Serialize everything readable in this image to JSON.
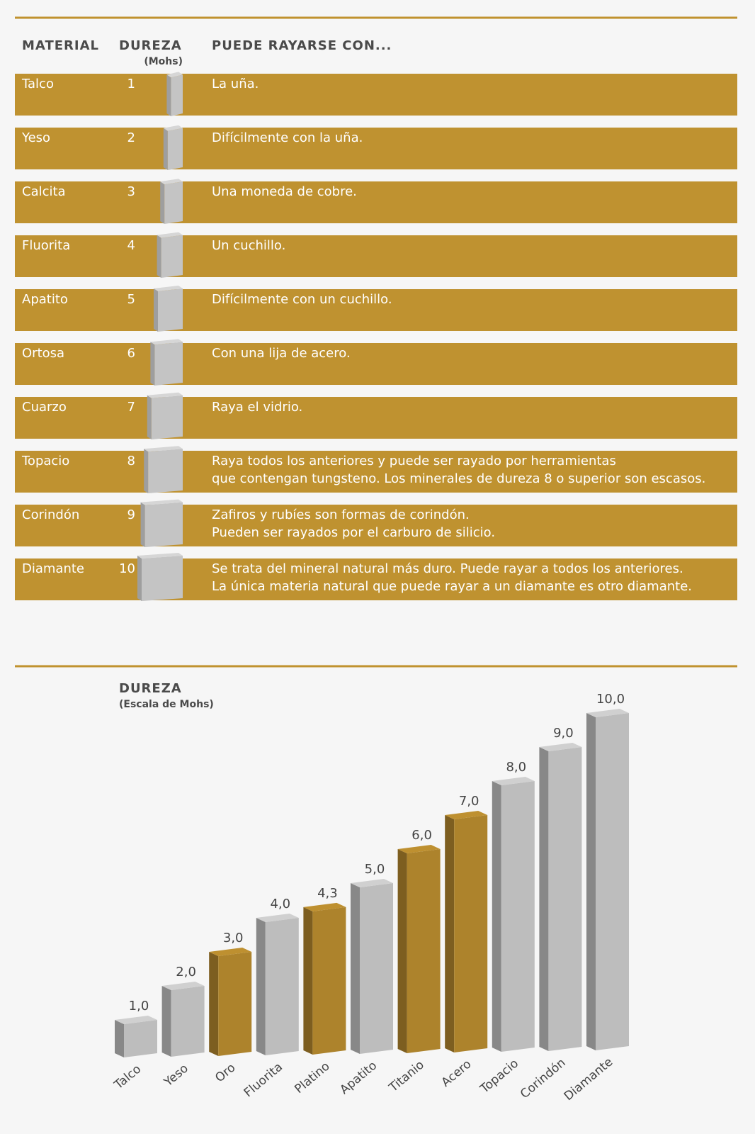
{
  "table": {
    "headers": {
      "material": "MATERIAL",
      "dureza": "DUREZA",
      "unit": "(Mohs)",
      "description": "PUEDE RAYARSE CON..."
    },
    "rows": [
      {
        "material": "Talco",
        "dureza": 1,
        "description": [
          "La uña."
        ]
      },
      {
        "material": "Yeso",
        "dureza": 2,
        "description": [
          "Difícilmente con la uña."
        ]
      },
      {
        "material": "Calcita",
        "dureza": 3,
        "description": [
          "Una moneda de cobre."
        ]
      },
      {
        "material": "Fluorita",
        "dureza": 4,
        "description": [
          "Un cuchillo."
        ]
      },
      {
        "material": "Apatito",
        "dureza": 5,
        "description": [
          "Difícilmente con un cuchillo."
        ]
      },
      {
        "material": "Ortosa",
        "dureza": 6,
        "description": [
          "Con una lija de acero."
        ]
      },
      {
        "material": "Cuarzo",
        "dureza": 7,
        "description": [
          "Raya el vidrio."
        ]
      },
      {
        "material": "Topacio",
        "dureza": 8,
        "description": [
          "Raya todos los anteriores y puede ser rayado por herramientas",
          "que contengan tungsteno. Los minerales de dureza 8 o superior son escasos."
        ]
      },
      {
        "material": "Corindón",
        "dureza": 9,
        "description": [
          "Zafiros y rubíes son formas de corindón.",
          "Pueden ser rayados por el carburo de silicio."
        ]
      },
      {
        "material": "Diamante",
        "dureza": 10,
        "description": [
          "Se trata del mineral natural más duro. Puede rayar a todos los anteriores.",
          "La única materia natural que puede rayar a un diamante es otro diamante."
        ]
      }
    ]
  },
  "chart_data": {
    "type": "bar3d",
    "title": "DUREZA",
    "subtitle": "(Escala de Mohs)",
    "categories": [
      "Talco",
      "Yeso",
      "Oro",
      "Fluorita",
      "Platino",
      "Apatito",
      "Titanio",
      "Acero",
      "Topacio",
      "Corindón",
      "Diamante"
    ],
    "values": [
      1,
      2,
      3,
      4,
      4.3,
      5,
      6,
      7,
      8,
      9,
      10
    ],
    "value_labels": [
      "1,0",
      "2,0",
      "3,0",
      "4,0",
      "4,3",
      "5,0",
      "6,0",
      "7,0",
      "8,0",
      "9,0",
      "10,0"
    ],
    "colors": [
      "#bdbdbd",
      "#bdbdbd",
      "#ad832c",
      "#bdbdbd",
      "#ad832c",
      "#bdbdbd",
      "#ad832c",
      "#ad832c",
      "#bdbdbd",
      "#bdbdbd",
      "#bdbdbd"
    ],
    "ylim": [
      0,
      10
    ]
  }
}
